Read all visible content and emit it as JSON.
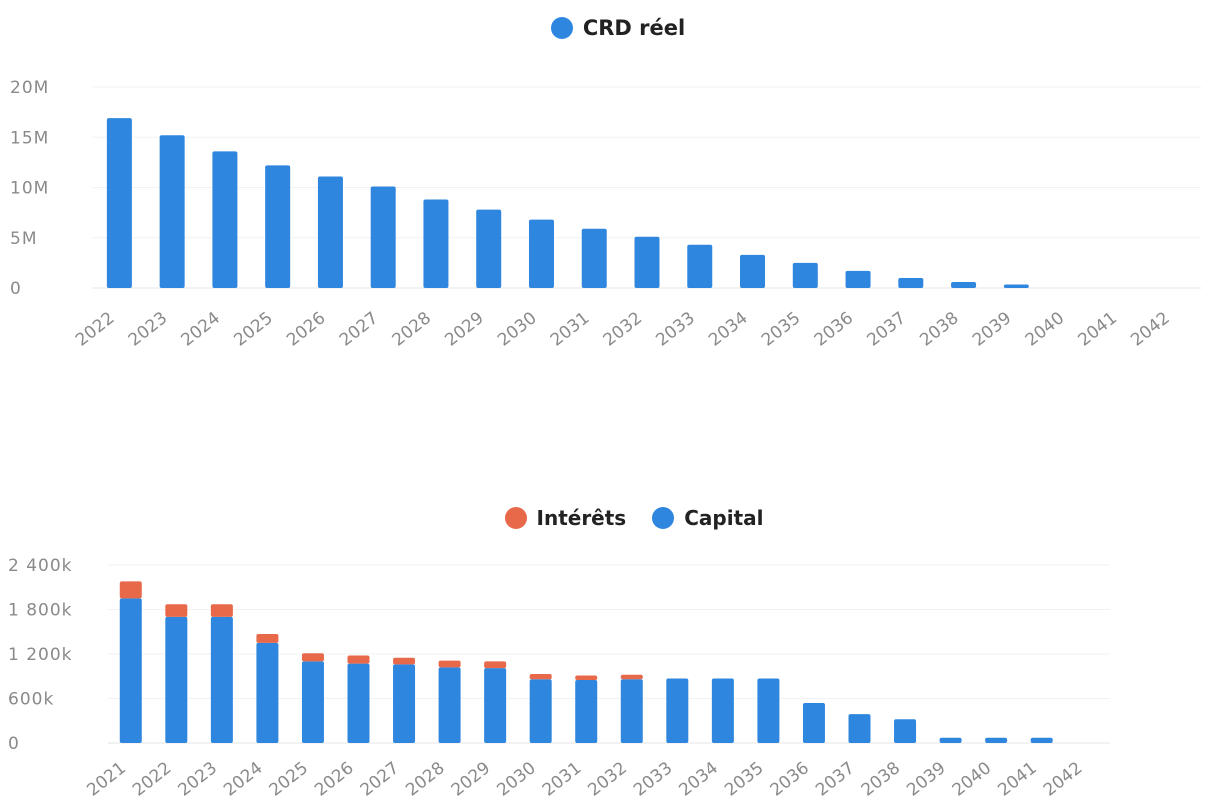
{
  "colors": {
    "capital": "#2e86de",
    "interets": "#e8684a"
  },
  "chart_data": [
    {
      "type": "bar",
      "legend": [
        {
          "name": "CRD réel",
          "color": "#2e86de"
        }
      ],
      "categories": [
        "2022",
        "2023",
        "2024",
        "2025",
        "2026",
        "2027",
        "2028",
        "2029",
        "2030",
        "2031",
        "2032",
        "2033",
        "2034",
        "2035",
        "2036",
        "2037",
        "2038",
        "2039",
        "2040",
        "2041",
        "2042"
      ],
      "series": [
        {
          "name": "CRD réel",
          "values": [
            16900000,
            15200000,
            13600000,
            12200000,
            11100000,
            10100000,
            8800000,
            7800000,
            6800000,
            5900000,
            5100000,
            4300000,
            3300000,
            2500000,
            1700000,
            1000000,
            600000,
            350000,
            0,
            0,
            0
          ]
        }
      ],
      "ylim": [
        0,
        20000000
      ],
      "yticks": [
        0,
        5000000,
        10000000,
        15000000,
        20000000
      ],
      "ytick_labels": [
        "0",
        "5M",
        "10M",
        "15M",
        "20M"
      ],
      "grid": true,
      "legend_position": "top-center"
    },
    {
      "type": "bar",
      "stacked": true,
      "legend": [
        {
          "name": "Intérêts",
          "color": "#e8684a"
        },
        {
          "name": "Capital",
          "color": "#2e86de"
        }
      ],
      "categories": [
        "2021",
        "2022",
        "2023",
        "2024",
        "2025",
        "2026",
        "2027",
        "2028",
        "2029",
        "2030",
        "2031",
        "2032",
        "2033",
        "2034",
        "2035",
        "2036",
        "2037",
        "2038",
        "2039",
        "2040",
        "2041",
        "2042"
      ],
      "series": [
        {
          "name": "Capital",
          "values": [
            1950000,
            1700000,
            1700000,
            1350000,
            1100000,
            1070000,
            1060000,
            1020000,
            1010000,
            860000,
            850000,
            860000,
            870000,
            870000,
            870000,
            540000,
            390000,
            320000,
            70000,
            70000,
            70000,
            0
          ]
        },
        {
          "name": "Intérêts",
          "values": [
            230000,
            170000,
            170000,
            120000,
            110000,
            110000,
            90000,
            90000,
            90000,
            70000,
            60000,
            60000,
            0,
            0,
            0,
            0,
            0,
            0,
            0,
            0,
            0,
            0
          ]
        }
      ],
      "ylim": [
        0,
        2400000
      ],
      "yticks": [
        0,
        600000,
        1200000,
        1800000,
        2400000
      ],
      "ytick_labels": [
        "0",
        "600k",
        "1 200k",
        "1 800k",
        "2 400k"
      ],
      "grid": true,
      "legend_position": "top-center"
    }
  ]
}
